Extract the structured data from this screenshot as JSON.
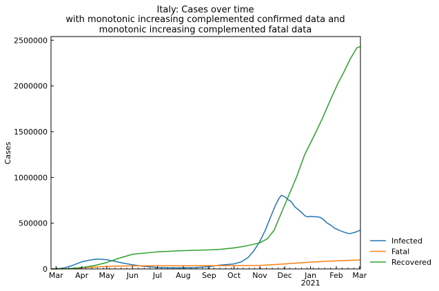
{
  "chart_data": {
    "type": "line",
    "title": [
      "Italy: Cases over time",
      "with monotonic increasing complemented confirmed data and",
      "monotonic increasing complemented fatal data"
    ],
    "xlabel": "",
    "ylabel": "Cases",
    "x_axis": {
      "type": "date",
      "range": [
        "2020-02-24",
        "2021-03-02"
      ],
      "ticks": [
        {
          "date": "2020-03-01",
          "label": "Mar"
        },
        {
          "date": "2020-04-01",
          "label": "Apr"
        },
        {
          "date": "2020-05-01",
          "label": "May"
        },
        {
          "date": "2020-06-01",
          "label": "Jun"
        },
        {
          "date": "2020-07-01",
          "label": "Jul"
        },
        {
          "date": "2020-08-01",
          "label": "Aug"
        },
        {
          "date": "2020-09-01",
          "label": "Sep"
        },
        {
          "date": "2020-10-01",
          "label": "Oct"
        },
        {
          "date": "2020-11-01",
          "label": "Nov"
        },
        {
          "date": "2020-12-01",
          "label": "Dec"
        },
        {
          "date": "2021-01-01",
          "label": "Jan",
          "sublabel": "2021"
        },
        {
          "date": "2021-02-01",
          "label": "Feb"
        },
        {
          "date": "2021-03-01",
          "label": "Mar"
        }
      ]
    },
    "y_axis": {
      "range": [
        0,
        2540000
      ],
      "ticks": [
        0,
        500000,
        1000000,
        1500000,
        2000000,
        2500000
      ]
    },
    "grid": false,
    "legend_position": "outside-bottom-right",
    "series": [
      {
        "name": "Infected",
        "color": "#1f77b4",
        "points": [
          [
            "2020-02-24",
            0
          ],
          [
            "2020-03-01",
            1500
          ],
          [
            "2020-03-10",
            9000
          ],
          [
            "2020-03-20",
            35000
          ],
          [
            "2020-04-01",
            78000
          ],
          [
            "2020-04-10",
            95000
          ],
          [
            "2020-04-19",
            108000
          ],
          [
            "2020-04-25",
            105000
          ],
          [
            "2020-05-01",
            101000
          ],
          [
            "2020-05-10",
            85000
          ],
          [
            "2020-05-20",
            65000
          ],
          [
            "2020-06-01",
            45000
          ],
          [
            "2020-06-15",
            28000
          ],
          [
            "2020-07-01",
            16000
          ],
          [
            "2020-07-15",
            12500
          ],
          [
            "2020-08-01",
            12500
          ],
          [
            "2020-08-15",
            14500
          ],
          [
            "2020-09-01",
            25000
          ],
          [
            "2020-09-15",
            42000
          ],
          [
            "2020-10-01",
            55000
          ],
          [
            "2020-10-10",
            78000
          ],
          [
            "2020-10-18",
            125000
          ],
          [
            "2020-10-25",
            200000
          ],
          [
            "2020-11-01",
            300000
          ],
          [
            "2020-11-08",
            430000
          ],
          [
            "2020-11-15",
            590000
          ],
          [
            "2020-11-20",
            700000
          ],
          [
            "2020-11-24",
            770000
          ],
          [
            "2020-11-27",
            805000
          ],
          [
            "2020-12-01",
            790000
          ],
          [
            "2020-12-05",
            757000
          ],
          [
            "2020-12-09",
            735000
          ],
          [
            "2020-12-13",
            680000
          ],
          [
            "2020-12-17",
            650000
          ],
          [
            "2020-12-21",
            620000
          ],
          [
            "2020-12-25",
            582000
          ],
          [
            "2020-12-29",
            568000
          ],
          [
            "2021-01-01",
            575000
          ],
          [
            "2021-01-05",
            570000
          ],
          [
            "2021-01-09",
            570000
          ],
          [
            "2021-01-12",
            565000
          ],
          [
            "2021-01-16",
            545000
          ],
          [
            "2021-01-20",
            508000
          ],
          [
            "2021-01-25",
            480000
          ],
          [
            "2021-01-30",
            445000
          ],
          [
            "2021-02-05",
            420000
          ],
          [
            "2021-02-11",
            400000
          ],
          [
            "2021-02-17",
            385000
          ],
          [
            "2021-02-21",
            395000
          ],
          [
            "2021-02-25",
            405000
          ],
          [
            "2021-03-02",
            425000
          ]
        ]
      },
      {
        "name": "Fatal",
        "color": "#ff7f0e",
        "points": [
          [
            "2020-02-24",
            0
          ],
          [
            "2020-03-15",
            2000
          ],
          [
            "2020-04-01",
            12500
          ],
          [
            "2020-05-01",
            28000
          ],
          [
            "2020-06-01",
            33500
          ],
          [
            "2020-07-01",
            34800
          ],
          [
            "2020-08-01",
            35200
          ],
          [
            "2020-09-01",
            35500
          ],
          [
            "2020-10-01",
            36000
          ],
          [
            "2020-11-01",
            39000
          ],
          [
            "2020-12-01",
            55000
          ],
          [
            "2021-01-01",
            74000
          ],
          [
            "2021-02-01",
            89000
          ],
          [
            "2021-03-02",
            98000
          ]
        ]
      },
      {
        "name": "Recovered",
        "color": "#2ca02c",
        "points": [
          [
            "2020-02-24",
            0
          ],
          [
            "2020-03-15",
            2500
          ],
          [
            "2020-04-01",
            15000
          ],
          [
            "2020-04-15",
            35000
          ],
          [
            "2020-05-01",
            70000
          ],
          [
            "2020-05-15",
            115000
          ],
          [
            "2020-06-01",
            160000
          ],
          [
            "2020-07-01",
            187000
          ],
          [
            "2020-08-01",
            200000
          ],
          [
            "2020-09-01",
            208000
          ],
          [
            "2020-09-15",
            215000
          ],
          [
            "2020-10-01",
            230000
          ],
          [
            "2020-10-15",
            250000
          ],
          [
            "2020-11-01",
            285000
          ],
          [
            "2020-11-10",
            330000
          ],
          [
            "2020-11-18",
            420000
          ],
          [
            "2020-12-01",
            700000
          ],
          [
            "2020-12-15",
            1000000
          ],
          [
            "2020-12-25",
            1250000
          ],
          [
            "2021-01-05",
            1450000
          ],
          [
            "2021-01-15",
            1640000
          ],
          [
            "2021-01-25",
            1850000
          ],
          [
            "2021-02-03",
            2030000
          ],
          [
            "2021-02-10",
            2150000
          ],
          [
            "2021-02-18",
            2300000
          ],
          [
            "2021-02-26",
            2420000
          ],
          [
            "2021-03-02",
            2430000
          ]
        ]
      }
    ]
  }
}
